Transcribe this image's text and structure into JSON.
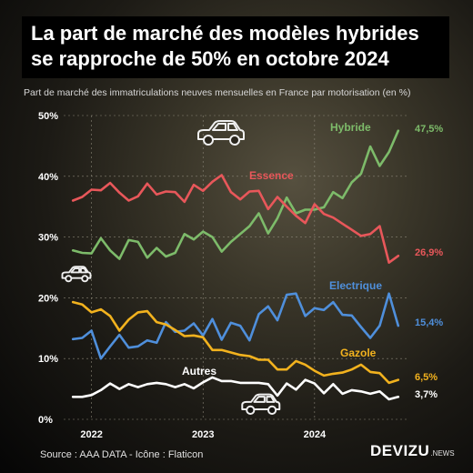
{
  "title": {
    "line1": "La part de marché des modèles hybrides",
    "line2": "se rapproche de 50% en octobre 2024"
  },
  "subtitle": "Part de marché des immatriculations neuves mensuelles en France par motorisation (en %)",
  "source": "Source : AAA DATA - Icône : Flaticon",
  "brand": {
    "name": "DEVIZU",
    "suffix": ".NEWS"
  },
  "icons": [
    "car-icon",
    "car-icon",
    "car-icon"
  ],
  "chart_data": {
    "type": "line",
    "ylim": [
      0,
      50
    ],
    "y_ticks": [
      0,
      10,
      20,
      30,
      40,
      50
    ],
    "y_tick_labels": [
      "0%",
      "10%",
      "20%",
      "30%",
      "40%",
      "50%"
    ],
    "x_ticks": [
      "2022",
      "2023",
      "2024"
    ],
    "x_tick_months": [
      3,
      15,
      27
    ],
    "x_range_months": [
      0,
      37
    ],
    "grid": true,
    "series": [
      {
        "name": "Hybride",
        "color": "#7dbb6a",
        "end_label": "47,5%",
        "values": [
          27.8,
          27.4,
          27.3,
          29.8,
          27.8,
          26.4,
          29.5,
          29.2,
          26.6,
          28.2,
          26.8,
          27.4,
          30.5,
          29.6,
          30.9,
          30.0,
          27.6,
          29.2,
          30.5,
          31.8,
          33.9,
          30.6,
          33.1,
          36.5,
          33.9,
          34.5,
          34.5,
          34.9,
          37.4,
          36.4,
          39.0,
          40.4,
          44.9,
          41.7,
          44.0,
          47.5
        ]
      },
      {
        "name": "Essence",
        "color": "#e8575a",
        "end_label": "26,9%",
        "values": [
          36.0,
          36.6,
          37.8,
          37.7,
          38.9,
          37.3,
          36.0,
          36.7,
          38.8,
          37.0,
          37.5,
          37.4,
          35.8,
          38.6,
          37.6,
          39.1,
          40.2,
          37.4,
          36.2,
          37.5,
          37.6,
          34.6,
          36.6,
          35.0,
          33.5,
          32.3,
          35.4,
          33.8,
          33.2,
          32.2,
          31.2,
          30.2,
          30.5,
          31.8,
          25.8,
          26.9
        ]
      },
      {
        "name": "Electrique",
        "color": "#4f8fdb",
        "end_label": "15,4%",
        "values": [
          13.2,
          13.4,
          14.6,
          10.0,
          12.0,
          13.9,
          11.8,
          12.0,
          13.0,
          12.6,
          16.0,
          14.4,
          14.6,
          15.8,
          13.8,
          16.5,
          13.1,
          15.9,
          15.4,
          13.0,
          17.3,
          18.6,
          16.3,
          20.5,
          20.7,
          17.0,
          18.3,
          18.0,
          19.3,
          17.2,
          17.1,
          15.2,
          13.4,
          15.4,
          20.7,
          15.4
        ]
      },
      {
        "name": "Gazole",
        "color": "#f2b21e",
        "end_label": "6,5%",
        "values": [
          19.3,
          18.9,
          17.6,
          18.1,
          17.0,
          14.6,
          16.4,
          17.6,
          17.8,
          16.0,
          15.6,
          14.7,
          13.7,
          13.8,
          13.5,
          11.4,
          11.4,
          11.0,
          10.6,
          10.4,
          9.8,
          9.8,
          8.2,
          8.2,
          9.6,
          9.0,
          8.0,
          7.2,
          7.5,
          7.7,
          8.2,
          9.0,
          7.8,
          7.6,
          6.0,
          6.5
        ]
      },
      {
        "name": "Autres",
        "color": "#ffffff",
        "end_label": "3,7%",
        "values": [
          3.7,
          3.7,
          4.0,
          4.8,
          5.9,
          5.0,
          5.8,
          5.3,
          5.8,
          6.0,
          5.8,
          5.3,
          5.8,
          5.1,
          6.1,
          6.9,
          6.3,
          6.3,
          6.0,
          6.0,
          6.0,
          5.8,
          3.9,
          5.9,
          4.9,
          6.5,
          5.9,
          4.3,
          5.8,
          4.2,
          4.8,
          4.6,
          4.2,
          4.6,
          3.3,
          3.7
        ]
      }
    ]
  }
}
